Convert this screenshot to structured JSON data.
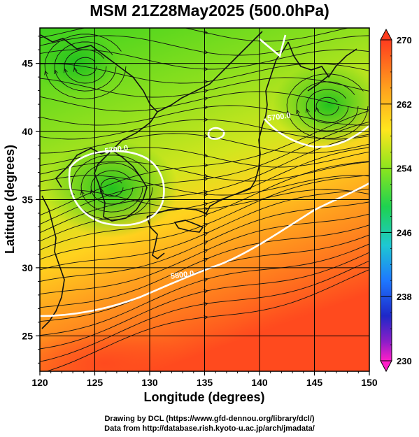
{
  "title": "MSM 21Z28May2025 (500.0hPa)",
  "chart_data": {
    "type": "heatmap",
    "xlabel": "Longitude (degrees)",
    "ylabel": "Latitude  (degrees)",
    "xlim": [
      120,
      150
    ],
    "ylim": [
      22.4,
      47.6
    ],
    "x_ticks": [
      "120",
      "125",
      "130",
      "135",
      "140",
      "145",
      "150"
    ],
    "y_ticks": [
      "25",
      "30",
      "35",
      "40",
      "45"
    ],
    "grid": true,
    "colorbar": {
      "range": [
        230,
        270
      ],
      "ticks": [
        "270",
        "262",
        "254",
        "246",
        "238",
        "230"
      ]
    },
    "contours": [
      {
        "label": "5700.0",
        "level": 5700.0,
        "lon": 127.0,
        "lat": 38.5
      },
      {
        "label": "5700.0",
        "level": 5700.0,
        "lon": 141.8,
        "lat": 40.9
      },
      {
        "label": "5800.0",
        "level": 5800.0,
        "lon": 133.0,
        "lat": 29.3
      }
    ]
  },
  "colors": {
    "cold_low_fill": "#28c81e",
    "mid_fill": "#8fe01e",
    "warm_fill": "#ff5a1e",
    "contour_line": "#ffffff",
    "streamline": "#111111"
  },
  "credits": {
    "line1": "Drawing by DCL (https://www.gfd-dennou.org/library/dcl/)",
    "line2": "Data from http://database.rish.kyoto-u.ac.jp/arch/jmadata/"
  }
}
